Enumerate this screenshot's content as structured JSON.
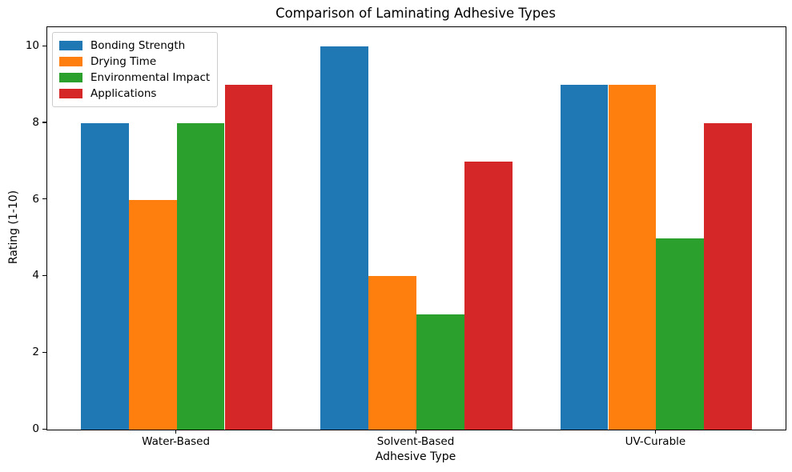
{
  "chart_data": {
    "type": "bar",
    "title": "Comparison of Laminating Adhesive Types",
    "xlabel": "Adhesive Type",
    "ylabel": "Rating (1-10)",
    "categories": [
      "Water-Based",
      "Solvent-Based",
      "UV-Curable"
    ],
    "series": [
      {
        "name": "Bonding Strength",
        "color": "#1f77b4",
        "values": [
          8,
          10,
          9
        ]
      },
      {
        "name": "Drying Time",
        "color": "#ff7f0e",
        "values": [
          6,
          4,
          9
        ]
      },
      {
        "name": "Environmental Impact",
        "color": "#2ca02c",
        "values": [
          8,
          3,
          5
        ]
      },
      {
        "name": "Applications",
        "color": "#d62728",
        "values": [
          9,
          7,
          8
        ]
      }
    ],
    "bar_width": 0.2,
    "ylim": [
      0,
      10.5
    ],
    "yticks": [
      0,
      2,
      4,
      6,
      8,
      10
    ],
    "grid": false,
    "legend_position": "upper left",
    "axis_color": "#000000",
    "background_color": "#ffffff"
  }
}
